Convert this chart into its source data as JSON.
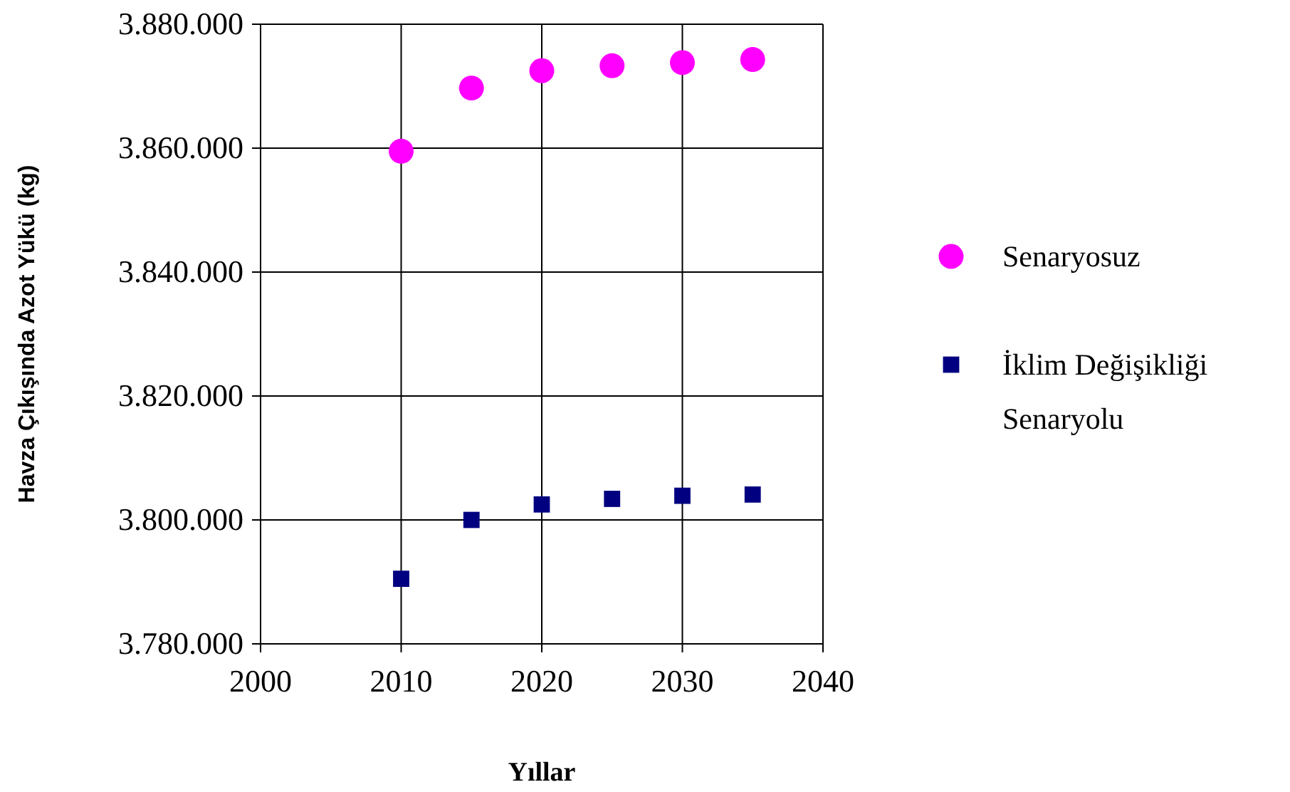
{
  "chart_data": {
    "type": "scatter",
    "xlabel": "Yıllar",
    "ylabel": "Havza Çıkışında Azot Yükü (kg)",
    "x": [
      2010,
      2015,
      2020,
      2025,
      2030,
      2035
    ],
    "series": [
      {
        "name": "Senaryosuz",
        "color": "#ff00ff",
        "marker": "circle",
        "values": [
          3859500,
          3869700,
          3872500,
          3873300,
          3873800,
          3874300
        ]
      },
      {
        "name": "İklim Değişikliği Senaryolu",
        "color": "#000080",
        "marker": "square",
        "values": [
          3790500,
          3800000,
          3802500,
          3803400,
          3803900,
          3804100
        ]
      }
    ],
    "xlim": [
      2000,
      2040
    ],
    "xticks": [
      2000,
      2010,
      2020,
      2030,
      2040
    ],
    "ylim": [
      3780000,
      3880000
    ],
    "yticks": [
      {
        "value": 3780000,
        "label": "3.780.000"
      },
      {
        "value": 3800000,
        "label": "3.800.000"
      },
      {
        "value": 3820000,
        "label": "3.820.000"
      },
      {
        "value": 3840000,
        "label": "3.840.000"
      },
      {
        "value": 3860000,
        "label": "3.860.000"
      },
      {
        "value": 3880000,
        "label": "3.880.000"
      }
    ],
    "grid": true,
    "legend": "right"
  }
}
